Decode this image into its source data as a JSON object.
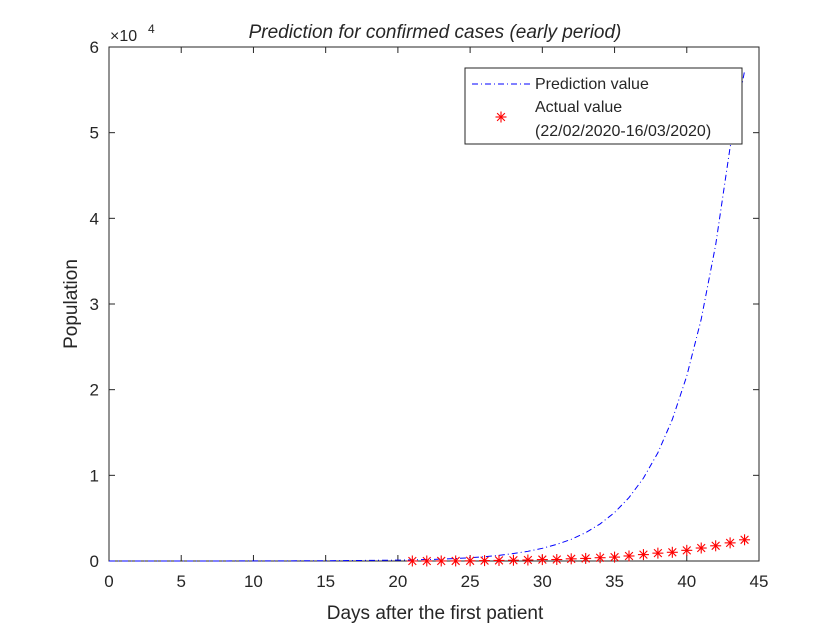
{
  "chart_data": {
    "type": "line",
    "title": "Prediction for confirmed cases (early period)",
    "xlabel": "Days after the first patient",
    "ylabel": "Population",
    "y_exponent_label": {
      "base": "×10",
      "exp": "4"
    },
    "xlim": [
      0,
      45
    ],
    "ylim": [
      0,
      6
    ],
    "x_ticks": [
      0,
      5,
      10,
      15,
      20,
      25,
      30,
      35,
      40,
      45
    ],
    "y_ticks": [
      0,
      1,
      2,
      3,
      4,
      5,
      6
    ],
    "grid": false,
    "legend_position": "top-right",
    "series": [
      {
        "name": "Prediction value",
        "style": "dash-dot line",
        "color": "#0000ff",
        "x": [
          0,
          5,
          10,
          15,
          20,
          21,
          22,
          23,
          24,
          25,
          26,
          27,
          28,
          29,
          30,
          31,
          32,
          33,
          34,
          35,
          36,
          37,
          38,
          39,
          40,
          41,
          42,
          43,
          44
        ],
        "y": [
          0.0001,
          0.0003,
          0.0009,
          0.003,
          0.01,
          0.013,
          0.017,
          0.022,
          0.029,
          0.038,
          0.05,
          0.066,
          0.087,
          0.113,
          0.148,
          0.194,
          0.253,
          0.331,
          0.433,
          0.566,
          0.74,
          0.967,
          1.264,
          1.652,
          2.16,
          2.823,
          3.69,
          4.83,
          5.72
        ]
      },
      {
        "name": "Actual value\n(22/02/2020-16/03/2020)",
        "legend_lines": [
          "Actual value",
          "(22/02/2020-16/03/2020)"
        ],
        "style": "asterisk markers",
        "color": "#ff0000",
        "x": [
          21,
          22,
          23,
          24,
          25,
          26,
          27,
          28,
          29,
          30,
          31,
          32,
          33,
          34,
          35,
          36,
          37,
          38,
          39,
          40,
          41,
          42,
          43,
          44
        ],
        "y": [
          0.0003,
          0.0003,
          0.0005,
          0.0009,
          0.0022,
          0.0045,
          0.0066,
          0.0089,
          0.0115,
          0.0165,
          0.0172,
          0.0253,
          0.03,
          0.0383,
          0.0454,
          0.0586,
          0.0748,
          0.0917,
          0.1016,
          0.1244,
          0.1515,
          0.1774,
          0.2116,
          0.2475
        ]
      }
    ]
  }
}
